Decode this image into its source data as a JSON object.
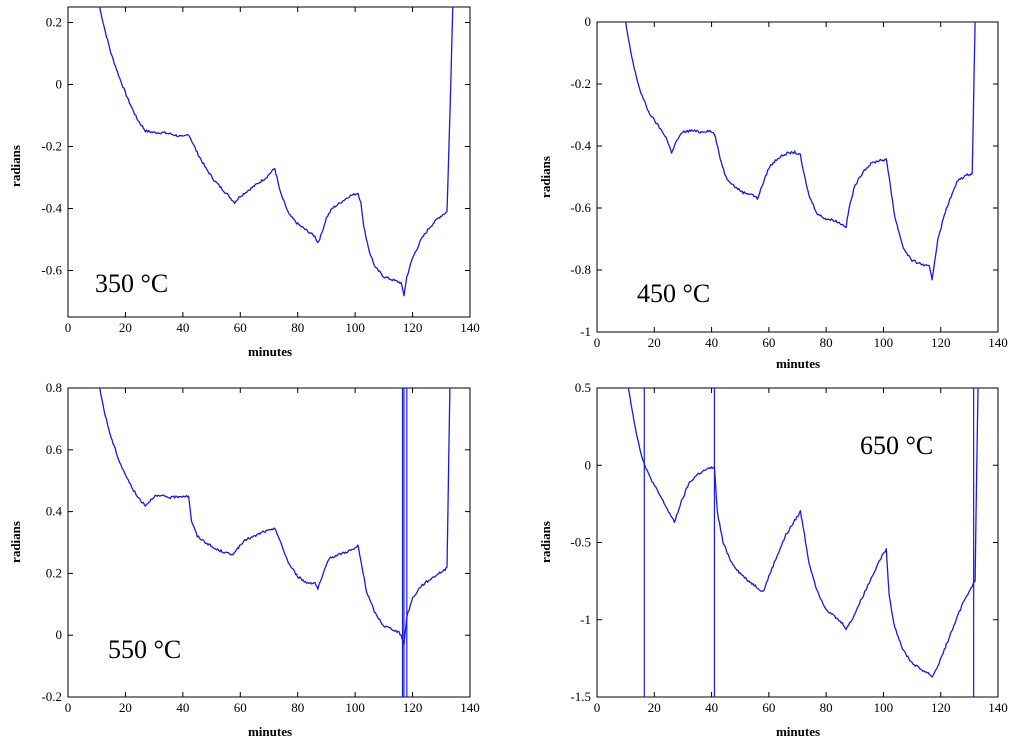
{
  "chart_data": [
    {
      "type": "line",
      "annotation": "350 °C",
      "xlabel": "minutes",
      "ylabel": "radians",
      "xlim": [
        0,
        140
      ],
      "ylim": [
        -0.75,
        0.25
      ],
      "xticks": [
        0,
        20,
        40,
        60,
        80,
        100,
        120,
        140
      ],
      "yticks": [
        -0.6,
        -0.4,
        -0.2,
        0,
        0.2
      ],
      "ytick_labels": [
        "-0.6",
        "-0.4",
        "-0.2",
        "0",
        "0.2"
      ],
      "grid": false,
      "color": "#1a1adf",
      "series": [
        {
          "x": [
            11,
            13,
            15,
            18,
            21,
            24,
            27,
            30,
            33,
            36,
            40,
            42,
            45,
            48,
            51,
            54,
            57,
            58,
            60,
            63,
            66,
            69,
            72,
            74,
            77,
            80,
            83,
            86,
            87,
            88,
            90,
            92,
            95,
            98,
            101,
            102,
            103,
            105,
            107,
            110,
            113,
            116,
            117,
            118,
            120,
            123,
            126,
            129,
            132,
            133,
            134
          ],
          "y": [
            0.25,
            0.17,
            0.1,
            0.02,
            -0.05,
            -0.11,
            -0.15,
            -0.155,
            -0.155,
            -0.16,
            -0.17,
            -0.16,
            -0.22,
            -0.27,
            -0.31,
            -0.34,
            -0.37,
            -0.38,
            -0.36,
            -0.34,
            -0.32,
            -0.3,
            -0.27,
            -0.35,
            -0.42,
            -0.45,
            -0.47,
            -0.49,
            -0.51,
            -0.49,
            -0.43,
            -0.4,
            -0.38,
            -0.36,
            -0.35,
            -0.38,
            -0.46,
            -0.54,
            -0.59,
            -0.62,
            -0.63,
            -0.64,
            -0.68,
            -0.62,
            -0.56,
            -0.5,
            -0.46,
            -0.43,
            -0.41,
            -0.1,
            0.25
          ]
        }
      ],
      "spikes": []
    },
    {
      "type": "line",
      "annotation": "450 °C",
      "xlabel": "minutes",
      "ylabel": "radians",
      "xlim": [
        0,
        140
      ],
      "ylim": [
        -1,
        0
      ],
      "xticks": [
        0,
        20,
        40,
        60,
        80,
        100,
        120,
        140
      ],
      "yticks": [
        -1,
        -0.8,
        -0.6,
        -0.4,
        -0.2,
        0
      ],
      "ytick_labels": [
        "-1",
        "-0.8",
        "-0.6",
        "-0.4",
        "-0.2",
        "0"
      ],
      "grid": false,
      "color": "#1a1adf",
      "series": [
        {
          "x": [
            10,
            11,
            13,
            15,
            18,
            21,
            24,
            26,
            28,
            30,
            33,
            36,
            39,
            41,
            43,
            45,
            48,
            51,
            54,
            56,
            58,
            60,
            63,
            66,
            69,
            71,
            72,
            74,
            77,
            80,
            83,
            85,
            87,
            88,
            90,
            93,
            96,
            99,
            101,
            102,
            104,
            107,
            110,
            113,
            116,
            117,
            119,
            122,
            126,
            130,
            131,
            132
          ],
          "y": [
            0,
            -0.06,
            -0.15,
            -0.22,
            -0.29,
            -0.33,
            -0.37,
            -0.42,
            -0.38,
            -0.355,
            -0.35,
            -0.355,
            -0.35,
            -0.36,
            -0.44,
            -0.5,
            -0.53,
            -0.55,
            -0.555,
            -0.57,
            -0.52,
            -0.47,
            -0.44,
            -0.425,
            -0.42,
            -0.43,
            -0.48,
            -0.56,
            -0.62,
            -0.635,
            -0.64,
            -0.65,
            -0.66,
            -0.6,
            -0.53,
            -0.48,
            -0.455,
            -0.445,
            -0.445,
            -0.5,
            -0.63,
            -0.73,
            -0.77,
            -0.78,
            -0.79,
            -0.83,
            -0.7,
            -0.6,
            -0.51,
            -0.49,
            -0.49,
            0
          ]
        }
      ],
      "spikes": []
    },
    {
      "type": "line",
      "annotation": "550 °C",
      "xlabel": "minutes",
      "ylabel": "radians",
      "xlim": [
        0,
        140
      ],
      "ylim": [
        -0.2,
        0.8
      ],
      "xticks": [
        0,
        20,
        40,
        60,
        80,
        100,
        120,
        140
      ],
      "yticks": [
        -0.2,
        0,
        0.2,
        0.4,
        0.6,
        0.8
      ],
      "ytick_labels": [
        "-0.2",
        "0",
        "0.2",
        "0.4",
        "0.6",
        "0.8"
      ],
      "grid": false,
      "color": "#1a1adf",
      "series": [
        {
          "x": [
            11,
            13,
            15,
            18,
            21,
            24,
            27,
            30,
            33,
            36,
            39,
            42,
            43,
            45,
            48,
            51,
            54,
            57,
            59,
            62,
            65,
            68,
            71,
            72,
            74,
            77,
            80,
            83,
            86,
            87,
            89,
            91,
            94,
            97,
            100,
            101,
            102,
            104,
            107,
            110,
            113,
            115,
            116,
            117,
            118,
            120,
            123,
            126,
            129,
            131,
            132,
            133
          ],
          "y": [
            0.8,
            0.71,
            0.64,
            0.56,
            0.5,
            0.45,
            0.42,
            0.45,
            0.45,
            0.445,
            0.45,
            0.45,
            0.37,
            0.32,
            0.3,
            0.28,
            0.27,
            0.26,
            0.28,
            0.31,
            0.32,
            0.335,
            0.34,
            0.35,
            0.3,
            0.23,
            0.19,
            0.17,
            0.17,
            0.15,
            0.2,
            0.25,
            0.26,
            0.27,
            0.28,
            0.29,
            0.24,
            0.14,
            0.07,
            0.03,
            0.02,
            0.01,
            0,
            -0.03,
            0.06,
            0.12,
            0.16,
            0.18,
            0.2,
            0.21,
            0.22,
            0.8
          ]
        }
      ],
      "spikes": [
        116.5,
        117,
        118
      ]
    },
    {
      "type": "line",
      "annotation": "650 °C",
      "xlabel": "minutes",
      "ylabel": "radians",
      "xlim": [
        0,
        140
      ],
      "ylim": [
        -1.5,
        0.5
      ],
      "xticks": [
        0,
        20,
        40,
        60,
        80,
        100,
        120,
        140
      ],
      "yticks": [
        -1.5,
        -1,
        -0.5,
        0,
        0.5
      ],
      "ytick_labels": [
        "-1.5",
        "-1",
        "-0.5",
        "0",
        "0.5"
      ],
      "grid": false,
      "color": "#1a1adf",
      "series": [
        {
          "x": [
            11,
            13,
            15,
            17,
            20,
            23,
            27,
            29,
            32,
            35,
            38,
            41,
            42,
            44,
            47,
            50,
            53,
            56,
            58,
            60,
            63,
            66,
            69,
            71,
            72,
            74,
            77,
            80,
            83,
            86,
            87,
            89,
            92,
            95,
            98,
            101,
            102,
            104,
            107,
            110,
            113,
            116,
            117,
            119,
            122,
            125,
            128,
            131,
            132,
            133
          ],
          "y": [
            0.5,
            0.28,
            0.1,
            -0.02,
            -0.13,
            -0.23,
            -0.37,
            -0.26,
            -0.12,
            -0.06,
            -0.03,
            -0.01,
            -0.3,
            -0.5,
            -0.63,
            -0.7,
            -0.75,
            -0.79,
            -0.82,
            -0.72,
            -0.58,
            -0.45,
            -0.36,
            -0.3,
            -0.4,
            -0.63,
            -0.82,
            -0.93,
            -0.98,
            -1.03,
            -1.06,
            -1.0,
            -0.88,
            -0.76,
            -0.64,
            -0.54,
            -0.85,
            -1.05,
            -1.2,
            -1.28,
            -1.32,
            -1.35,
            -1.37,
            -1.3,
            -1.16,
            -1.02,
            -0.88,
            -0.78,
            -0.75,
            0.5
          ]
        }
      ],
      "spikes": [
        16.5,
        41,
        131.5
      ]
    }
  ]
}
